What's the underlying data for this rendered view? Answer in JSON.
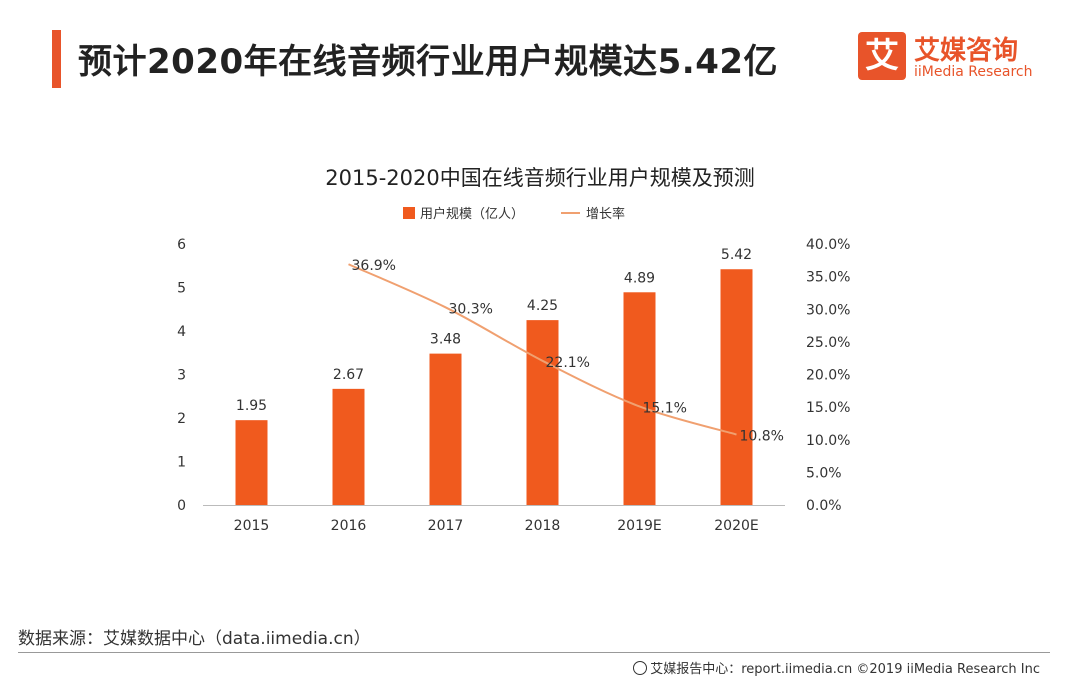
{
  "header": {
    "title": "预计2020年在线音频行业用户规模达5.42亿",
    "logo_mark": "艾",
    "logo_cn": "艾媒咨询",
    "logo_en": "iiMedia Research"
  },
  "colors": {
    "accent": "#e8542a",
    "bar": "#f05a1e",
    "line": "#f0a070"
  },
  "chart_data": {
    "type": "bar",
    "title": "2015-2020中国在线音频行业用户规模及预测",
    "categories": [
      "2015",
      "2016",
      "2017",
      "2018",
      "2019E",
      "2020E"
    ],
    "series": [
      {
        "name": "用户规模（亿人）",
        "type": "bar",
        "axis": "left",
        "values": [
          1.95,
          2.67,
          3.48,
          4.25,
          4.89,
          5.42
        ],
        "labels": [
          "1.95",
          "2.67",
          "3.48",
          "4.25",
          "4.89",
          "5.42"
        ]
      },
      {
        "name": "增长率",
        "type": "line",
        "axis": "right",
        "values": [
          null,
          36.9,
          30.3,
          22.1,
          15.1,
          10.8
        ],
        "labels": [
          "",
          "36.9%",
          "30.3%",
          "22.1%",
          "15.1%",
          "10.8%"
        ]
      }
    ],
    "ylim": [
      0,
      6
    ],
    "y_ticks": [
      "0",
      "1",
      "2",
      "3",
      "4",
      "5",
      "6"
    ],
    "y2lim": [
      0,
      40
    ],
    "y2_ticks": [
      "0.0%",
      "5.0%",
      "10.0%",
      "15.0%",
      "20.0%",
      "25.0%",
      "30.0%",
      "35.0%",
      "40.0%"
    ],
    "legend_position": "top-center",
    "grid": false
  },
  "footer": {
    "source": "数据来源：艾媒数据中心（data.iimedia.cn）",
    "credit": "艾媒报告中心：report.iimedia.cn  ©2019  iiMedia Research  Inc"
  }
}
